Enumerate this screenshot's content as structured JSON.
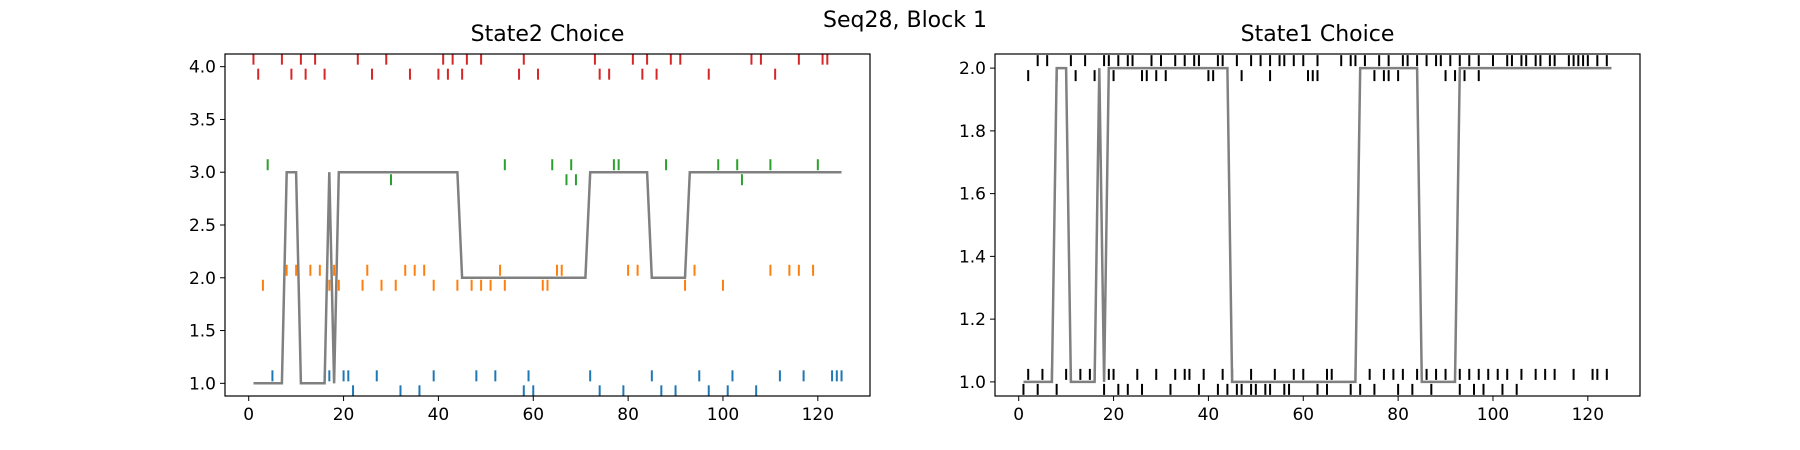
{
  "figure": {
    "suptitle": "Seq28, Block 1"
  },
  "colors": {
    "blue": "#1f77b4",
    "orange": "#ff7f0e",
    "green": "#2ca02c",
    "red": "#d62728",
    "black": "#000000",
    "line": "#808080"
  },
  "chart_data": [
    {
      "type": "scatter",
      "title": "State2 Choice",
      "xlim": [
        -5,
        131
      ],
      "ylim": [
        0.88,
        4.12
      ],
      "xticks": [
        0,
        20,
        40,
        60,
        80,
        100,
        120
      ],
      "yticks": [
        1.0,
        1.5,
        2.0,
        2.5,
        3.0,
        3.5,
        4.0
      ],
      "ytick_labels": [
        "1.0",
        "1.5",
        "2.0",
        "2.5",
        "3.0",
        "3.5",
        "4.0"
      ],
      "series": [
        {
          "color": "blue",
          "y": 1,
          "upper_x": [
            5,
            17,
            20,
            21,
            27,
            39,
            48,
            52,
            59,
            72,
            85,
            95,
            102,
            112,
            117,
            123,
            124,
            125
          ],
          "lower_x": [
            22,
            32,
            36,
            58,
            60,
            74,
            79,
            87,
            90,
            97,
            101,
            107
          ]
        },
        {
          "color": "orange",
          "y": 2,
          "upper_x": [
            8,
            10,
            13,
            15,
            18,
            25,
            33,
            35,
            37,
            53,
            65,
            66,
            80,
            82,
            94,
            110,
            114,
            116,
            119
          ],
          "lower_x": [
            3,
            17,
            19,
            24,
            28,
            31,
            39,
            44,
            47,
            49,
            51,
            54,
            62,
            63,
            92,
            100
          ]
        },
        {
          "color": "green",
          "y": 3,
          "upper_x": [
            4,
            54,
            64,
            68,
            77,
            78,
            88,
            99,
            103,
            110,
            120
          ],
          "lower_x": [
            30,
            67,
            69,
            104
          ]
        },
        {
          "color": "red",
          "y": 4,
          "upper_x": [
            1,
            7,
            11,
            14,
            23,
            29,
            41,
            43,
            46,
            49,
            58,
            73,
            81,
            84,
            89,
            91,
            106,
            108,
            116,
            121,
            122
          ],
          "lower_x": [
            2,
            9,
            12,
            16,
            26,
            34,
            40,
            42,
            45,
            57,
            61,
            74,
            76,
            83,
            86,
            97,
            111
          ]
        }
      ],
      "line": {
        "color": "line",
        "x": [
          1,
          2,
          3,
          4,
          5,
          6,
          7,
          8,
          9,
          10,
          11,
          12,
          13,
          14,
          15,
          16,
          17,
          18,
          19,
          20,
          21,
          22,
          23,
          24,
          25,
          26,
          27,
          28,
          29,
          30,
          31,
          32,
          33,
          34,
          35,
          36,
          37,
          38,
          39,
          40,
          41,
          42,
          43,
          44,
          45,
          46,
          47,
          48,
          49,
          50,
          51,
          52,
          53,
          54,
          55,
          56,
          57,
          58,
          59,
          60,
          61,
          62,
          63,
          64,
          65,
          66,
          67,
          68,
          69,
          70,
          71,
          72,
          73,
          74,
          75,
          76,
          77,
          78,
          79,
          80,
          81,
          82,
          83,
          84,
          85,
          86,
          87,
          88,
          89,
          90,
          91,
          92,
          93,
          94,
          95,
          96,
          97,
          98,
          99,
          100,
          101,
          102,
          103,
          104,
          105,
          106,
          107,
          108,
          109,
          110,
          111,
          112,
          113,
          114,
          115,
          116,
          117,
          118,
          119,
          120,
          121,
          122,
          123,
          124,
          125
        ],
        "y": [
          1,
          1,
          1,
          1,
          1,
          1,
          1,
          3,
          3,
          3,
          1,
          1,
          1,
          1,
          1,
          1,
          3,
          1,
          3,
          3,
          3,
          3,
          3,
          3,
          3,
          3,
          3,
          3,
          3,
          3,
          3,
          3,
          3,
          3,
          3,
          3,
          3,
          3,
          3,
          3,
          3,
          3,
          3,
          3,
          2,
          2,
          2,
          2,
          2,
          2,
          2,
          2,
          2,
          2,
          2,
          2,
          2,
          2,
          2,
          2,
          2,
          2,
          2,
          2,
          2,
          2,
          2,
          2,
          2,
          2,
          2,
          3,
          3,
          3,
          3,
          3,
          3,
          3,
          3,
          3,
          3,
          3,
          3,
          3,
          2,
          2,
          2,
          2,
          2,
          2,
          2,
          2,
          3,
          3,
          3,
          3,
          3,
          3,
          3,
          3,
          3,
          3,
          3,
          3,
          3,
          3,
          3,
          3,
          3,
          3,
          3,
          3,
          3,
          3,
          3,
          3,
          3,
          3,
          3,
          3,
          3,
          3,
          3,
          3,
          3
        ]
      }
    },
    {
      "type": "scatter",
      "title": "State1 Choice",
      "xlim": [
        -5,
        131
      ],
      "ylim": [
        0.955,
        2.045
      ],
      "xticks": [
        0,
        20,
        40,
        60,
        80,
        100,
        120
      ],
      "yticks": [
        1.0,
        1.2,
        1.4,
        1.6,
        1.8,
        2.0
      ],
      "ytick_labels": [
        "1.0",
        "1.2",
        "1.4",
        "1.6",
        "1.8",
        "2.0"
      ],
      "series": [
        {
          "color": "black",
          "y": 2,
          "upper_x": [
            4,
            6,
            11,
            14,
            18,
            19,
            21,
            23,
            24,
            28,
            30,
            33,
            35,
            37,
            38,
            42,
            43,
            46,
            49,
            51,
            53,
            55,
            56,
            58,
            60,
            63,
            68,
            70,
            71,
            73,
            76,
            78,
            81,
            82,
            84,
            86,
            88,
            89,
            91,
            93,
            95,
            97,
            100,
            103,
            104,
            106,
            107,
            109,
            110,
            112,
            113,
            116,
            117,
            118,
            119,
            120,
            122,
            124
          ],
          "lower_x": [
            2,
            8,
            12,
            16,
            20,
            26,
            27,
            29,
            31,
            40,
            41,
            47,
            53,
            61,
            62,
            63,
            75,
            77,
            78,
            80,
            90,
            92,
            94,
            97
          ]
        },
        {
          "color": "black",
          "y": 1,
          "upper_x": [
            2,
            5,
            7,
            10,
            11,
            13,
            15,
            16,
            19,
            20,
            25,
            29,
            33,
            35,
            36,
            39,
            43,
            45,
            49,
            54,
            58,
            60,
            65,
            66,
            71,
            74,
            77,
            79,
            81,
            84,
            86,
            88,
            90,
            93,
            95,
            97,
            99,
            101,
            103,
            106,
            109,
            111,
            113,
            117,
            121,
            122,
            124
          ],
          "lower_x": [
            1,
            4,
            8,
            18,
            21,
            23,
            26,
            32,
            38,
            42,
            44,
            46,
            47,
            49,
            50,
            52,
            53,
            56,
            57,
            63,
            65,
            70,
            72,
            75,
            80,
            83,
            87,
            93,
            96,
            98,
            102,
            105
          ]
        }
      ],
      "line": {
        "color": "line",
        "x": [
          1,
          2,
          3,
          4,
          5,
          6,
          7,
          8,
          9,
          10,
          11,
          12,
          13,
          14,
          15,
          16,
          17,
          18,
          19,
          20,
          21,
          22,
          23,
          24,
          25,
          26,
          27,
          28,
          29,
          30,
          31,
          32,
          33,
          34,
          35,
          36,
          37,
          38,
          39,
          40,
          41,
          42,
          43,
          44,
          45,
          46,
          47,
          48,
          49,
          50,
          51,
          52,
          53,
          54,
          55,
          56,
          57,
          58,
          59,
          60,
          61,
          62,
          63,
          64,
          65,
          66,
          67,
          68,
          69,
          70,
          71,
          72,
          73,
          74,
          75,
          76,
          77,
          78,
          79,
          80,
          81,
          82,
          83,
          84,
          85,
          86,
          87,
          88,
          89,
          90,
          91,
          92,
          93,
          94,
          95,
          96,
          97,
          98,
          99,
          100,
          101,
          102,
          103,
          104,
          105,
          106,
          107,
          108,
          109,
          110,
          111,
          112,
          113,
          114,
          115,
          116,
          117,
          118,
          119,
          120,
          121,
          122,
          123,
          124,
          125
        ],
        "y": [
          1,
          1,
          1,
          1,
          1,
          1,
          1,
          2,
          2,
          2,
          1,
          1,
          1,
          1,
          1,
          1,
          2,
          1,
          2,
          2,
          2,
          2,
          2,
          2,
          2,
          2,
          2,
          2,
          2,
          2,
          2,
          2,
          2,
          2,
          2,
          2,
          2,
          2,
          2,
          2,
          2,
          2,
          2,
          2,
          1,
          1,
          1,
          1,
          1,
          1,
          1,
          1,
          1,
          1,
          1,
          1,
          1,
          1,
          1,
          1,
          1,
          1,
          1,
          1,
          1,
          1,
          1,
          1,
          1,
          1,
          1,
          2,
          2,
          2,
          2,
          2,
          2,
          2,
          2,
          2,
          2,
          2,
          2,
          2,
          1,
          1,
          1,
          1,
          1,
          1,
          1,
          1,
          2,
          2,
          2,
          2,
          2,
          2,
          2,
          2,
          2,
          2,
          2,
          2,
          2,
          2,
          2,
          2,
          2,
          2,
          2,
          2,
          2,
          2,
          2,
          2,
          2,
          2,
          2,
          2,
          2,
          2,
          2,
          2,
          2
        ]
      }
    }
  ]
}
